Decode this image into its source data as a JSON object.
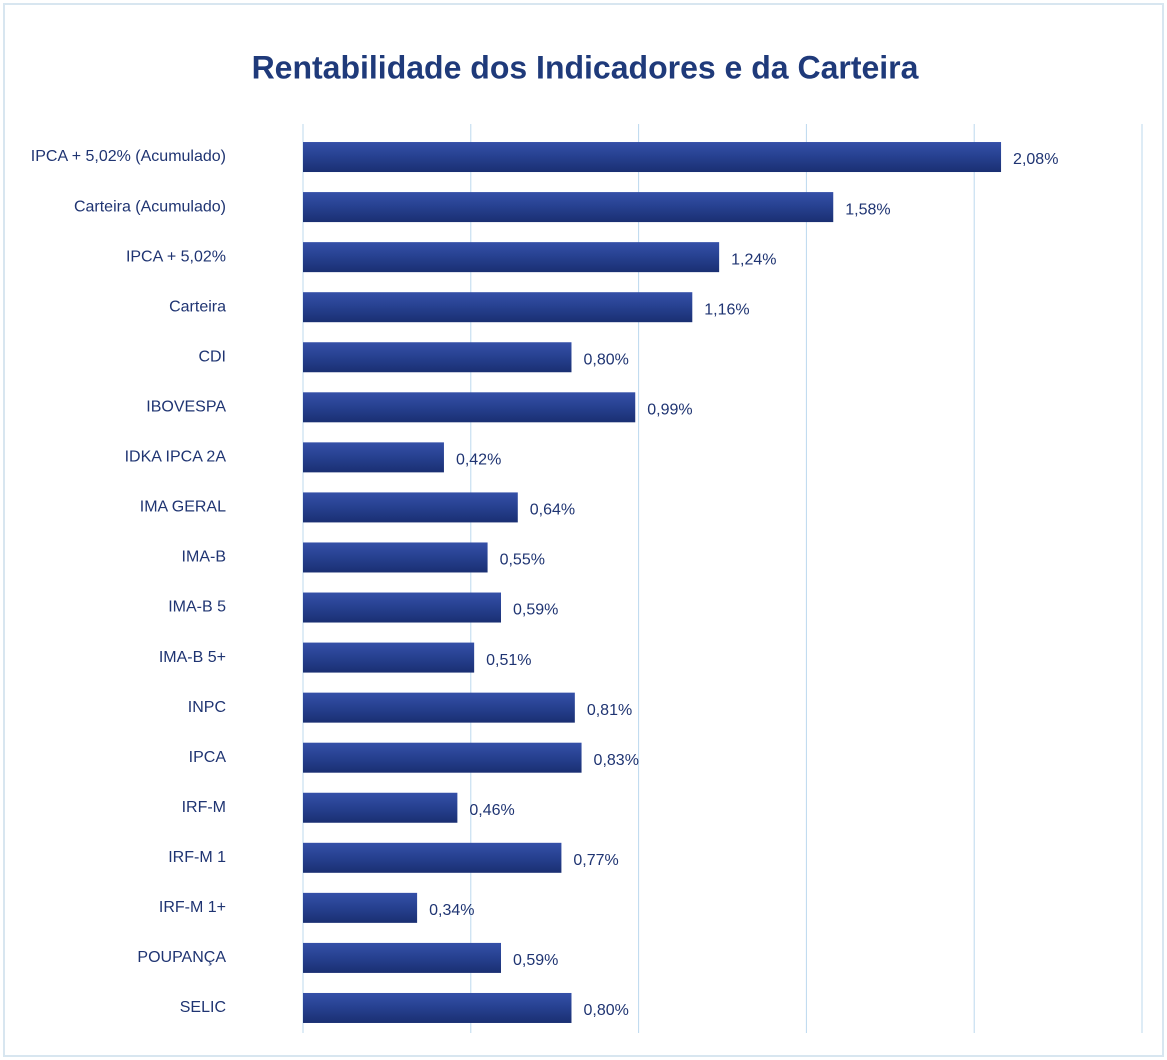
{
  "chart_data": {
    "type": "hbar",
    "title": "Rentabilidade dos Indicadores e da Carteira",
    "categories": [
      "IPCA + 5,02% (Acumulado)",
      "Carteira (Acumulado)",
      "IPCA + 5,02%",
      "Carteira",
      "CDI",
      "IBOVESPA",
      "IDKA IPCA 2A",
      "IMA GERAL",
      "IMA-B",
      "IMA-B 5",
      "IMA-B 5+",
      "INPC",
      "IPCA",
      "IRF-M",
      "IRF-M 1",
      "IRF-M 1+",
      "POUPANÇA",
      "SELIC"
    ],
    "values": [
      2.08,
      1.58,
      1.24,
      1.16,
      0.8,
      0.99,
      0.42,
      0.64,
      0.55,
      0.59,
      0.51,
      0.81,
      0.83,
      0.46,
      0.77,
      0.34,
      0.59,
      0.8
    ],
    "value_labels": [
      "2,08%",
      "1,58%",
      "1,24%",
      "1,16%",
      "0,80%",
      "0,99%",
      "0,42%",
      "0,64%",
      "0,55%",
      "0,59%",
      "0,51%",
      "0,81%",
      "0,83%",
      "0,46%",
      "0,77%",
      "0,34%",
      "0,59%",
      "0,80%"
    ],
    "color": "#26408f",
    "xlim": [
      0,
      2.5
    ],
    "xticks": [
      0,
      0.5,
      1,
      1.5,
      2,
      2.5
    ],
    "xtick_labels": false,
    "grid": true
  }
}
